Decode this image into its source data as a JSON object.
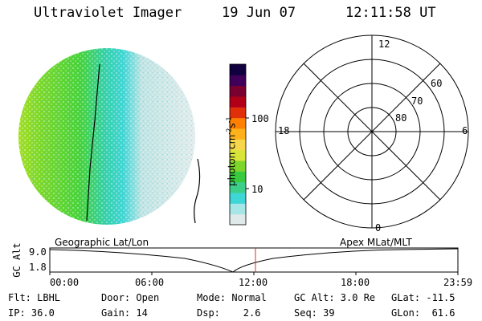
{
  "header": {
    "instrument": "Ultraviolet Imager",
    "date": "19 Jun 07",
    "time": "12:11:58 UT"
  },
  "image_panel": {
    "description_icon": "auroral-image-icon",
    "colors": {
      "green": "#5bd52a",
      "yellow_green": "#a8e022",
      "cyan": "#34d4d4",
      "light": "#dce9e9"
    }
  },
  "colorbar": {
    "label": "photon cm",
    "label_sup1": "-2",
    "label_mid": "s",
    "label_sup2": "-1",
    "ticks": [
      "100",
      "10"
    ],
    "colors": [
      "#dfe9e9",
      "#a7e6e6",
      "#3fd6d6",
      "#3ccf8a",
      "#37cb3d",
      "#7ed62b",
      "#d8e43a",
      "#f6d64a",
      "#ffb21a",
      "#ff7f00",
      "#e0300a",
      "#b00018",
      "#7a0030",
      "#40005a",
      "#100040"
    ]
  },
  "polar_plot": {
    "mlt_labels": {
      "top": "12",
      "left": "18",
      "right": "6",
      "bottom": "0"
    },
    "lat_labels": [
      "60",
      "70",
      "80"
    ]
  },
  "timeline": {
    "left_label": "Geographic Lat/Lon",
    "right_label": "Apex MLat/MLT",
    "y_axis_label": "GC Alt",
    "y_ticks": [
      "9.0",
      "1.8"
    ],
    "x_ticks": [
      "00:00",
      "06:00",
      "12:00",
      "18:00",
      "23:59"
    ],
    "marker_color": "#d03030"
  },
  "info": {
    "flt": "Flt: LBHL",
    "door": "Door: Open",
    "mode": "Mode: Normal",
    "gc_alt": "GC Alt: 3.0 Re",
    "glat": "GLat: -11.5",
    "ip": "IP: 36.0",
    "gain": "Gain: 14",
    "dsp": "Dsp:    2.6",
    "seq": "Seq: 39",
    "glon": "GLon:  61.6"
  }
}
